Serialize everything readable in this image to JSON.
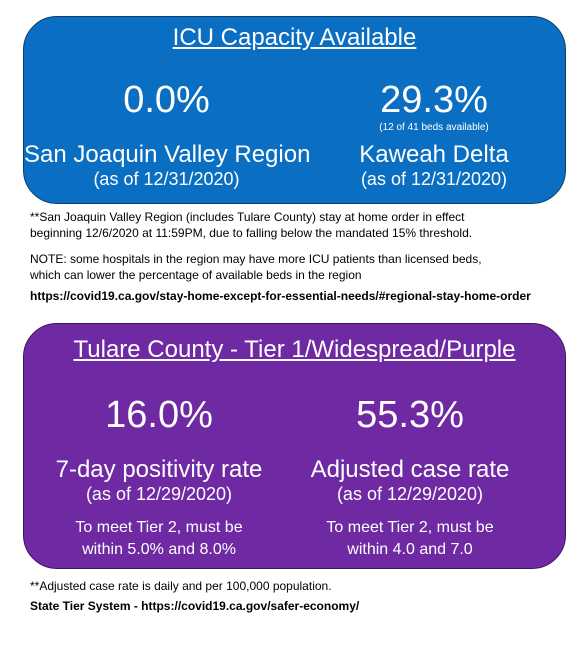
{
  "icu": {
    "title": "ICU Capacity Available",
    "left": {
      "value": "0.0%",
      "name": "San Joaquin Valley Region",
      "as_of": "(as of 12/31/2020)"
    },
    "right": {
      "value": "29.3%",
      "beds": "(12 of 41 beds available)",
      "name": "Kaweah Delta",
      "as_of": "(as of 12/31/2020)"
    }
  },
  "notes": {
    "order_line1": "**San Joaquin Valley Region (includes Tulare County) stay at home order in effect",
    "order_line2": "beginning 12/6/2020  at 11:59PM,  due to falling below the mandated 15% threshold.",
    "note_line1": "NOTE:  some hospitals in the region may have more ICU patients than licensed beds,",
    "note_line2": "which can lower the percentage of available beds in the region",
    "link1": "https://covid19.ca.gov/stay-home-except-for-essential-needs/#regional-stay-home-order"
  },
  "tier": {
    "title": "Tulare County - Tier 1/Widespread/Purple",
    "left": {
      "value": "16.0%",
      "name": "7-day positivity rate",
      "as_of": "(as of 12/29/2020)",
      "req_line1": "To meet Tier 2, must be",
      "req_line2": "within 5.0% and 8.0%"
    },
    "right": {
      "value": "55.3%",
      "name": "Adjusted case rate",
      "as_of": "(as of 12/29/2020)",
      "req_line1": "To meet Tier 2, must be",
      "req_line2": "within 4.0 and 7.0"
    }
  },
  "footer": {
    "note": "**Adjusted case rate is daily and per 100,000  population.",
    "link": "State Tier System - https://covid19.ca.gov/safer-economy/"
  },
  "colors": {
    "icu_panel": "#0a6fc2",
    "tier_panel": "#6f2aa3"
  }
}
